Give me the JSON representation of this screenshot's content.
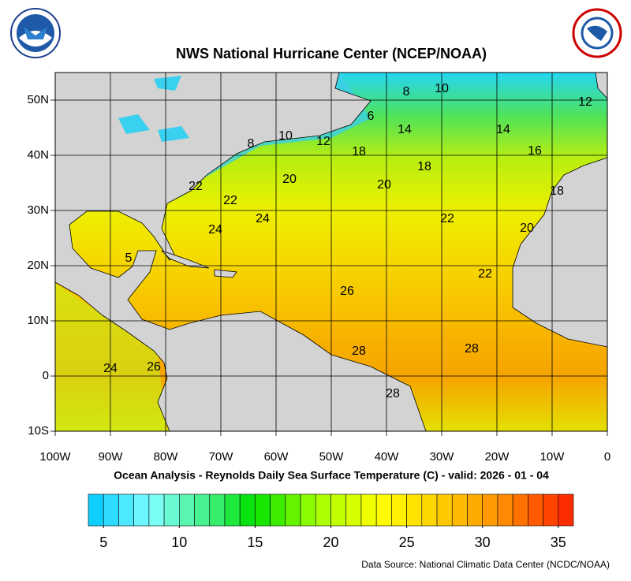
{
  "header": {
    "title": "NWS National Hurricane Center (NCEP/NOAA)"
  },
  "map": {
    "x_labels": [
      "100W",
      "90W",
      "80W",
      "70W",
      "60W",
      "50W",
      "40W",
      "30W",
      "20W",
      "10W",
      "0"
    ],
    "y_labels": [
      "10S",
      "0",
      "10N",
      "20N",
      "30N",
      "40N",
      "50N"
    ],
    "contour_labels": [
      "10",
      "8",
      "12",
      "6",
      "14",
      "14",
      "8",
      "10",
      "12",
      "18",
      "16",
      "20",
      "18",
      "20",
      "22",
      "18",
      "22",
      "24",
      "22",
      "24",
      "20",
      "5",
      "22",
      "26",
      "24",
      "26",
      "28",
      "28",
      "28"
    ]
  },
  "caption": "Ocean Analysis - Reynolds Daily Sea Surface Temperature (C) - valid: 2026 - 01 - 04",
  "colorbar": {
    "range": [
      4,
      36
    ],
    "ticks": [
      5,
      10,
      15,
      20,
      25,
      30,
      35
    ]
  },
  "source": "Data Source: National Climatic Data Center (NCDC/NOAA)"
}
